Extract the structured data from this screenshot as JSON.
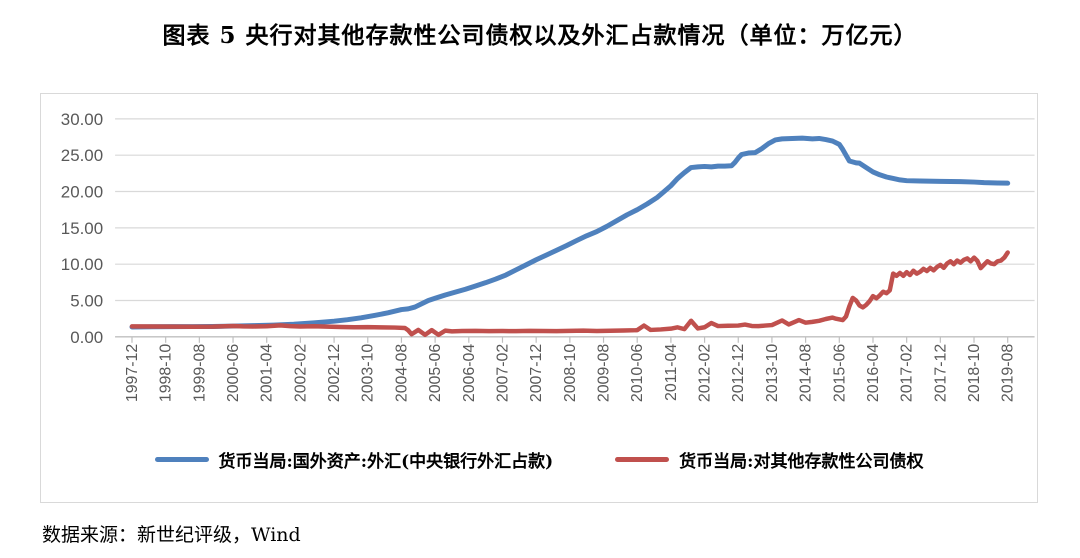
{
  "title": "图表 5  央行对其他存款性公司债权以及外汇占款情况（单位：万亿元）",
  "source_note": "数据来源：新世纪评级，Wind",
  "colors": {
    "fx_line": "#4F81BD",
    "claims_line": "#C0504D",
    "gridline": "#d9d9d9",
    "axis": "#bfbfbf",
    "tick_label": "#595959"
  },
  "chart_data": {
    "type": "line",
    "title": "央行对其他存款性公司债权以及外汇占款情况",
    "unit": "万亿元",
    "ylim": [
      0,
      30
    ],
    "grid": true,
    "legend_position": "bottom",
    "y_tick_labels": [
      "30.00",
      "25.00",
      "20.00",
      "15.00",
      "10.00",
      "5.00",
      "0.00"
    ],
    "x_tick_labels": [
      "1997-12",
      "1998-10",
      "1999-08",
      "2000-06",
      "2001-04",
      "2002-02",
      "2002-12",
      "2003-10",
      "2004-08",
      "2005-06",
      "2006-04",
      "2007-02",
      "2007-12",
      "2008-10",
      "2009-08",
      "2010-06",
      "2011-04",
      "2012-02",
      "2012-12",
      "2013-10",
      "2014-08",
      "2015-06",
      "2016-04",
      "2017-02",
      "2017-12",
      "2018-10",
      "2019-08"
    ],
    "x_months_total": 260,
    "series": [
      {
        "name": "货币当局:国外资产:外汇(中央银行外汇占款)",
        "color": "#4F81BD",
        "points": [
          [
            0,
            1.35
          ],
          [
            6,
            1.38
          ],
          [
            12,
            1.4
          ],
          [
            18,
            1.41
          ],
          [
            24,
            1.43
          ],
          [
            30,
            1.48
          ],
          [
            36,
            1.53
          ],
          [
            42,
            1.6
          ],
          [
            48,
            1.72
          ],
          [
            54,
            1.92
          ],
          [
            60,
            2.15
          ],
          [
            64,
            2.35
          ],
          [
            68,
            2.62
          ],
          [
            72,
            2.95
          ],
          [
            76,
            3.3
          ],
          [
            80,
            3.75
          ],
          [
            82,
            3.85
          ],
          [
            84,
            4.1
          ],
          [
            86,
            4.55
          ],
          [
            88,
            5.0
          ],
          [
            90,
            5.3
          ],
          [
            93,
            5.75
          ],
          [
            96,
            6.15
          ],
          [
            99,
            6.55
          ],
          [
            102,
            7.0
          ],
          [
            105,
            7.45
          ],
          [
            108,
            7.95
          ],
          [
            111,
            8.5
          ],
          [
            114,
            9.2
          ],
          [
            117,
            9.9
          ],
          [
            120,
            10.6
          ],
          [
            123,
            11.25
          ],
          [
            126,
            11.9
          ],
          [
            129,
            12.55
          ],
          [
            132,
            13.25
          ],
          [
            135,
            13.9
          ],
          [
            138,
            14.5
          ],
          [
            141,
            15.2
          ],
          [
            144,
            16.0
          ],
          [
            147,
            16.8
          ],
          [
            150,
            17.5
          ],
          [
            153,
            18.3
          ],
          [
            156,
            19.2
          ],
          [
            158,
            20.0
          ],
          [
            160,
            20.8
          ],
          [
            162,
            21.8
          ],
          [
            163,
            22.2
          ],
          [
            164,
            22.6
          ],
          [
            166,
            23.3
          ],
          [
            168,
            23.4
          ],
          [
            170,
            23.45
          ],
          [
            172,
            23.4
          ],
          [
            174,
            23.5
          ],
          [
            176,
            23.5
          ],
          [
            178,
            23.55
          ],
          [
            179,
            24.0
          ],
          [
            180,
            24.6
          ],
          [
            181,
            25.1
          ],
          [
            183,
            25.3
          ],
          [
            185,
            25.35
          ],
          [
            187,
            25.9
          ],
          [
            189,
            26.6
          ],
          [
            191,
            27.1
          ],
          [
            193,
            27.25
          ],
          [
            196,
            27.3
          ],
          [
            199,
            27.35
          ],
          [
            202,
            27.25
          ],
          [
            204,
            27.3
          ],
          [
            206,
            27.15
          ],
          [
            208,
            26.95
          ],
          [
            210,
            26.5
          ],
          [
            211,
            25.8
          ],
          [
            212,
            25.0
          ],
          [
            213,
            24.2
          ],
          [
            215,
            23.95
          ],
          [
            216,
            23.9
          ],
          [
            218,
            23.3
          ],
          [
            220,
            22.7
          ],
          [
            222,
            22.3
          ],
          [
            224,
            22.0
          ],
          [
            226,
            21.8
          ],
          [
            228,
            21.6
          ],
          [
            230,
            21.5
          ],
          [
            234,
            21.45
          ],
          [
            240,
            21.4
          ],
          [
            246,
            21.35
          ],
          [
            250,
            21.3
          ],
          [
            253,
            21.22
          ],
          [
            257,
            21.18
          ],
          [
            260,
            21.15
          ]
        ]
      },
      {
        "name": "货币当局:对其他存款性公司债权",
        "color": "#C0504D",
        "points": [
          [
            0,
            1.44
          ],
          [
            6,
            1.42
          ],
          [
            12,
            1.4
          ],
          [
            18,
            1.38
          ],
          [
            24,
            1.4
          ],
          [
            30,
            1.5
          ],
          [
            33,
            1.44
          ],
          [
            36,
            1.42
          ],
          [
            40,
            1.45
          ],
          [
            44,
            1.58
          ],
          [
            47,
            1.46
          ],
          [
            50,
            1.42
          ],
          [
            54,
            1.45
          ],
          [
            58,
            1.4
          ],
          [
            62,
            1.36
          ],
          [
            66,
            1.31
          ],
          [
            70,
            1.33
          ],
          [
            74,
            1.3
          ],
          [
            78,
            1.28
          ],
          [
            81,
            1.22
          ],
          [
            82,
            0.9
          ],
          [
            83,
            0.35
          ],
          [
            85,
            0.95
          ],
          [
            87,
            0.28
          ],
          [
            89,
            0.92
          ],
          [
            91,
            0.28
          ],
          [
            93,
            0.85
          ],
          [
            95,
            0.75
          ],
          [
            98,
            0.8
          ],
          [
            102,
            0.82
          ],
          [
            106,
            0.78
          ],
          [
            110,
            0.8
          ],
          [
            114,
            0.78
          ],
          [
            118,
            0.82
          ],
          [
            122,
            0.8
          ],
          [
            126,
            0.78
          ],
          [
            130,
            0.82
          ],
          [
            134,
            0.85
          ],
          [
            138,
            0.8
          ],
          [
            142,
            0.83
          ],
          [
            146,
            0.86
          ],
          [
            150,
            0.92
          ],
          [
            152,
            1.55
          ],
          [
            154,
            0.95
          ],
          [
            157,
            1.02
          ],
          [
            160,
            1.12
          ],
          [
            162,
            1.3
          ],
          [
            164,
            1.05
          ],
          [
            166,
            2.2
          ],
          [
            168,
            1.15
          ],
          [
            170,
            1.32
          ],
          [
            172,
            1.9
          ],
          [
            174,
            1.48
          ],
          [
            177,
            1.52
          ],
          [
            180,
            1.55
          ],
          [
            182,
            1.68
          ],
          [
            184,
            1.5
          ],
          [
            186,
            1.47
          ],
          [
            188,
            1.55
          ],
          [
            190,
            1.62
          ],
          [
            193,
            2.25
          ],
          [
            195,
            1.7
          ],
          [
            197,
            2.1
          ],
          [
            198,
            2.3
          ],
          [
            200,
            1.95
          ],
          [
            202,
            2.05
          ],
          [
            204,
            2.2
          ],
          [
            206,
            2.45
          ],
          [
            208,
            2.65
          ],
          [
            209,
            2.5
          ],
          [
            211,
            2.3
          ],
          [
            212,
            2.8
          ],
          [
            213,
            4.2
          ],
          [
            214,
            5.35
          ],
          [
            215,
            5.0
          ],
          [
            216,
            4.3
          ],
          [
            217,
            4.05
          ],
          [
            218,
            4.4
          ],
          [
            219,
            4.9
          ],
          [
            220,
            5.6
          ],
          [
            221,
            5.3
          ],
          [
            222,
            5.7
          ],
          [
            223,
            6.2
          ],
          [
            224,
            6.0
          ],
          [
            225,
            6.4
          ],
          [
            226,
            8.7
          ],
          [
            227,
            8.4
          ],
          [
            228,
            8.8
          ],
          [
            229,
            8.4
          ],
          [
            230,
            8.9
          ],
          [
            231,
            8.5
          ],
          [
            232,
            9.1
          ],
          [
            233,
            8.7
          ],
          [
            234,
            8.95
          ],
          [
            235,
            9.35
          ],
          [
            236,
            9.05
          ],
          [
            237,
            9.5
          ],
          [
            238,
            9.15
          ],
          [
            239,
            9.6
          ],
          [
            240,
            9.9
          ],
          [
            241,
            9.5
          ],
          [
            242,
            10.1
          ],
          [
            243,
            10.4
          ],
          [
            244,
            10.0
          ],
          [
            245,
            10.5
          ],
          [
            246,
            10.2
          ],
          [
            247,
            10.6
          ],
          [
            248,
            10.8
          ],
          [
            249,
            10.4
          ],
          [
            250,
            10.9
          ],
          [
            251,
            10.45
          ],
          [
            252,
            9.45
          ],
          [
            253,
            9.95
          ],
          [
            254,
            10.4
          ],
          [
            255,
            10.1
          ],
          [
            256,
            10.0
          ],
          [
            257,
            10.4
          ],
          [
            258,
            10.5
          ],
          [
            259,
            10.9
          ],
          [
            260,
            11.6
          ]
        ]
      }
    ]
  }
}
